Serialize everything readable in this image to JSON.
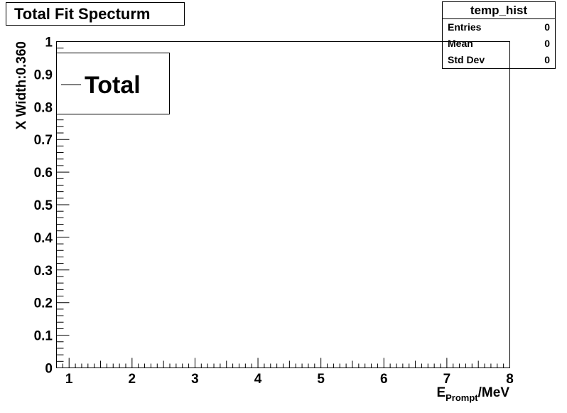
{
  "chart_data": {
    "type": "line",
    "title": "Total Fit Specturm",
    "xlabel": {
      "main": "E",
      "subscript": "Prompt",
      "suffix": "/MeV"
    },
    "ylabel": "X Width:0.360",
    "xlim": [
      0.8,
      8
    ],
    "ylim": [
      0,
      1
    ],
    "x_ticks": [
      1,
      2,
      3,
      4,
      5,
      6,
      7,
      8
    ],
    "y_ticks": [
      0,
      0.1,
      0.2,
      0.3,
      0.4,
      0.5,
      0.6,
      0.7,
      0.8,
      0.9,
      1
    ],
    "legend": {
      "placement": "top-left",
      "entries": [
        "Total"
      ]
    },
    "series": [
      {
        "name": "Total",
        "x": [],
        "values": []
      }
    ],
    "grid": false
  },
  "stats_box": {
    "title": "temp_hist",
    "rows": [
      {
        "label": "Entries",
        "value": "0"
      },
      {
        "label": "Mean",
        "value": "0"
      },
      {
        "label": "Std Dev",
        "value": "0"
      }
    ]
  },
  "colors": {
    "axis": "#000000",
    "background": "#ffffff"
  }
}
